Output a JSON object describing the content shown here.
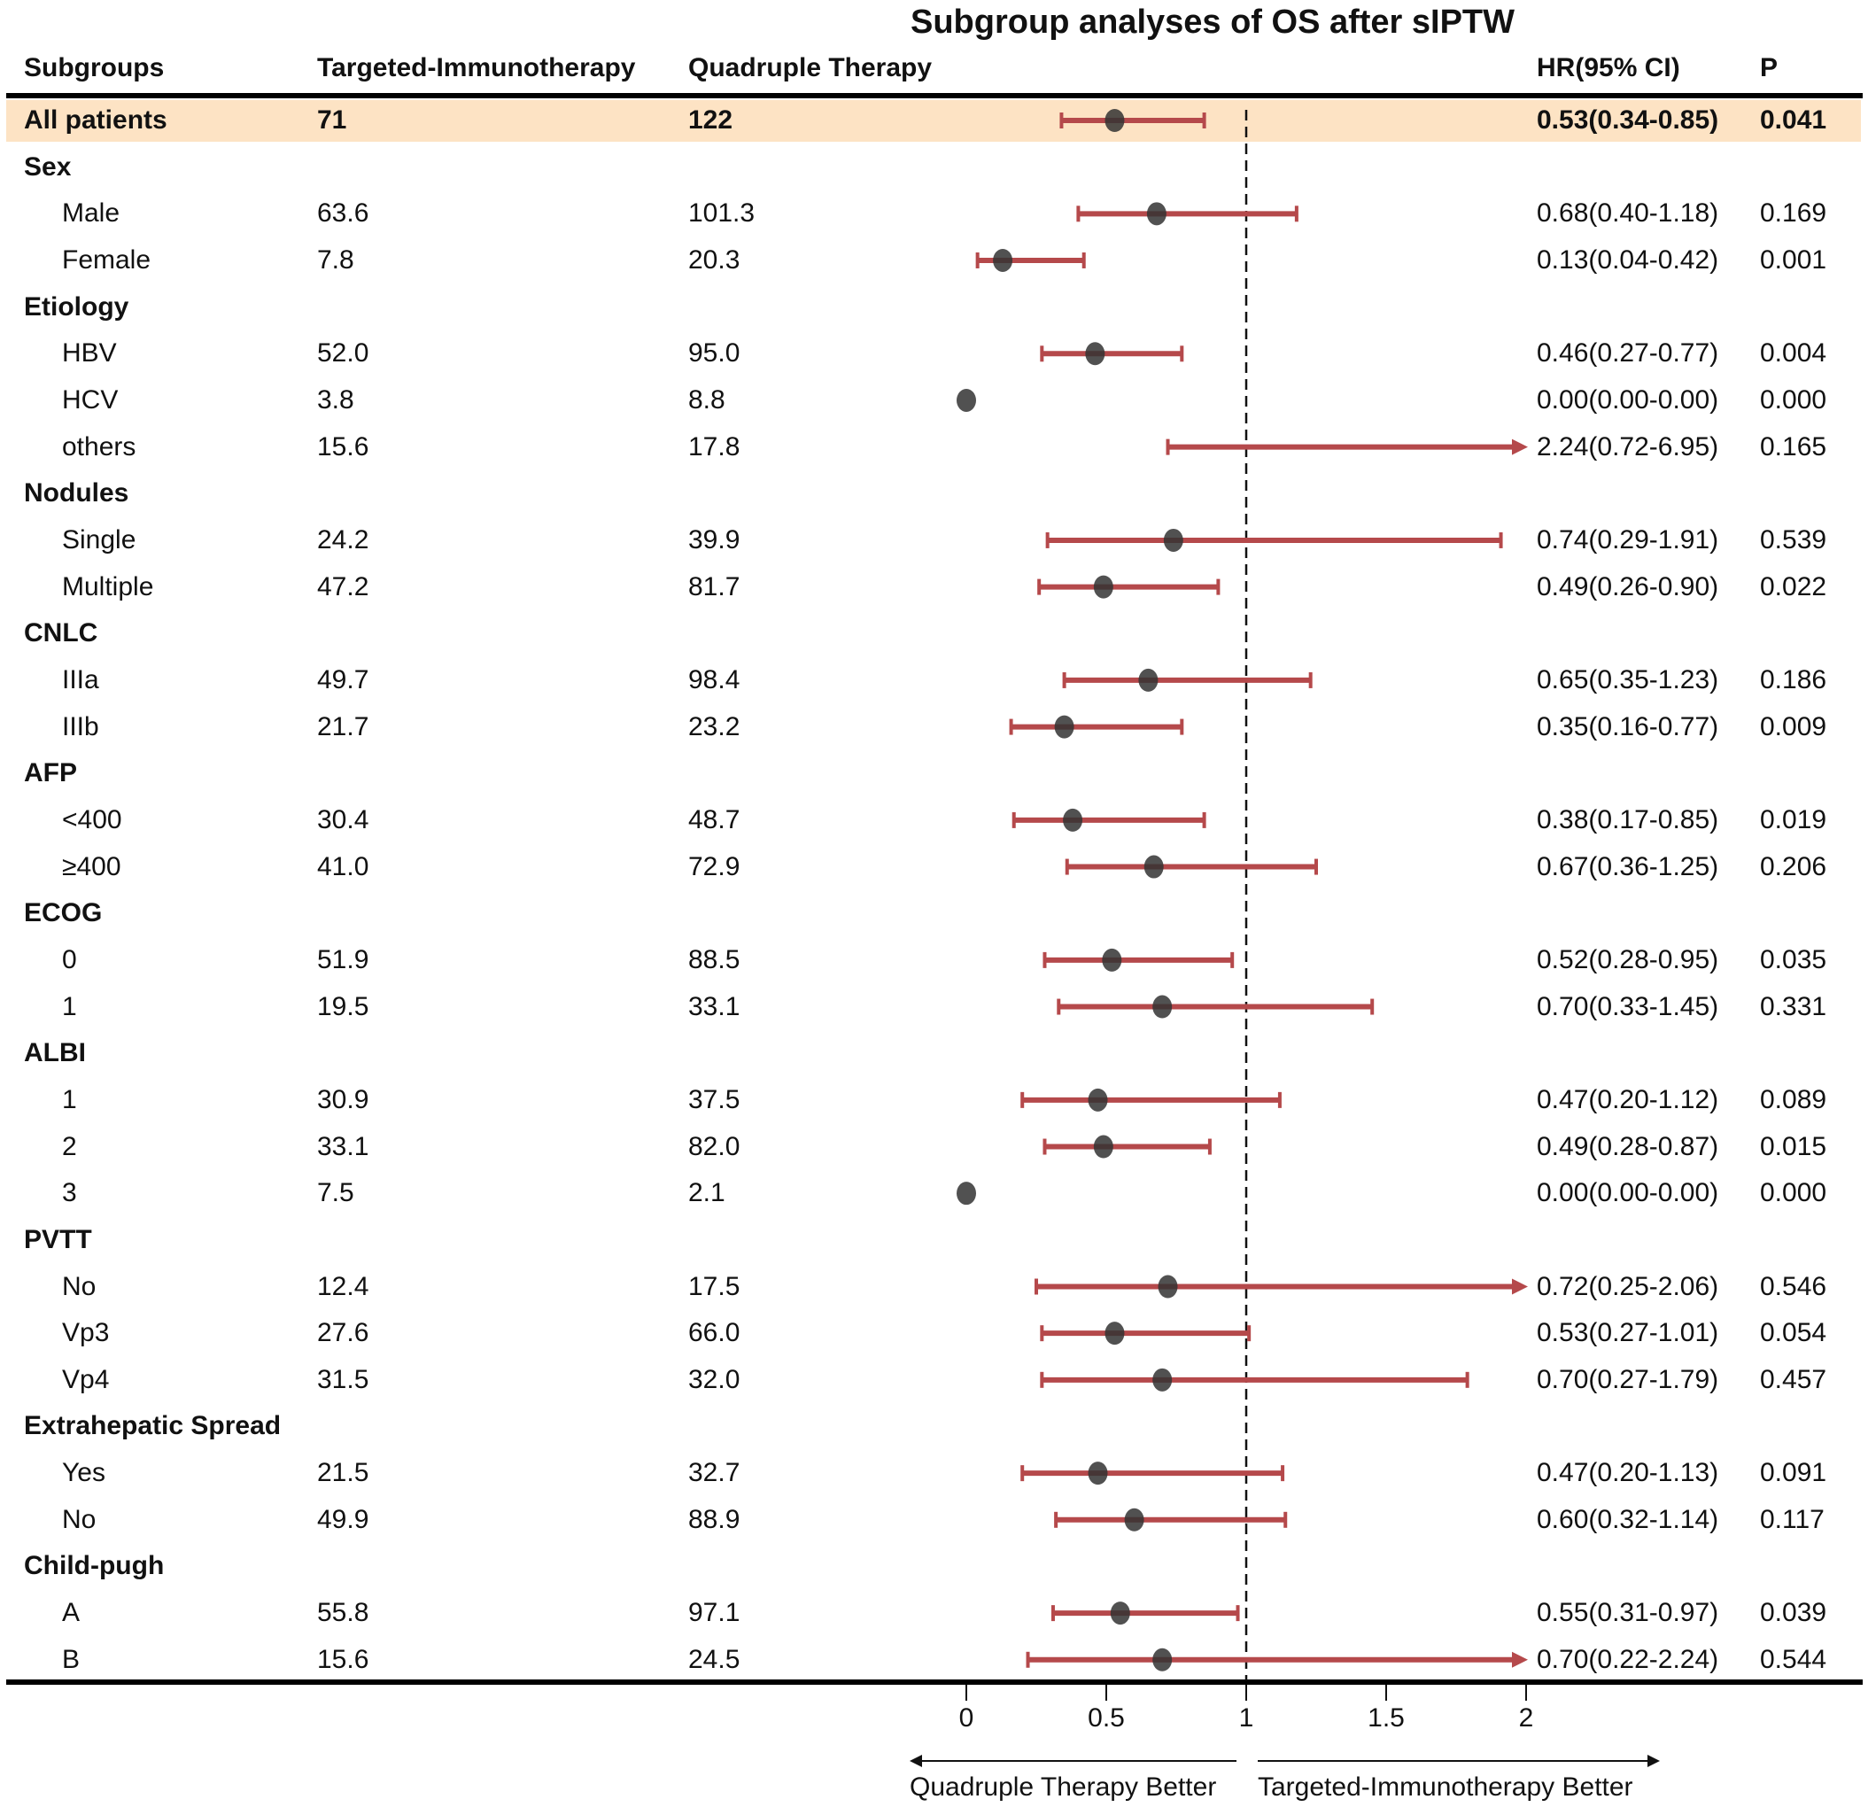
{
  "chart_data": {
    "type": "forest",
    "title": "Subgroup analyses of OS after sIPTW",
    "headers": {
      "subgroups": "Subgroups",
      "col1": "Targeted-Immunotherapy",
      "col2": "Quadruple Therapy",
      "hr": "HR(95% CI)",
      "p": "P"
    },
    "xaxis": {
      "ticks": [
        0,
        0.5,
        1,
        1.5,
        2
      ],
      "tick_labels": [
        "0",
        "0.5",
        "1",
        "1.5",
        "2"
      ],
      "xlim": [
        0,
        2
      ],
      "reference": 1
    },
    "direction_labels": {
      "left": "Quadruple Therapy Better",
      "right": "Targeted-Immunotherapy Better"
    },
    "colors": {
      "ci": "#b5494b",
      "point": "#333333",
      "highlight": "#fde3c4"
    },
    "rows": [
      {
        "label": "All patients",
        "kind": "overall",
        "t": "71",
        "q": "122",
        "hr": 0.53,
        "lo": 0.34,
        "hi": 0.85,
        "ci_text": "0.53(0.34-0.85)",
        "p": "0.041"
      },
      {
        "label": "Sex",
        "kind": "group"
      },
      {
        "label": "Male",
        "kind": "sub",
        "t": "63.6",
        "q": "101.3",
        "hr": 0.68,
        "lo": 0.4,
        "hi": 1.18,
        "ci_text": "0.68(0.40-1.18)",
        "p": "0.169"
      },
      {
        "label": "Female",
        "kind": "sub",
        "t": "7.8",
        "q": "20.3",
        "hr": 0.13,
        "lo": 0.04,
        "hi": 0.42,
        "ci_text": "0.13(0.04-0.42)",
        "p": "0.001"
      },
      {
        "label": "Etiology",
        "kind": "group"
      },
      {
        "label": "HBV",
        "kind": "sub",
        "t": "52.0",
        "q": "95.0",
        "hr": 0.46,
        "lo": 0.27,
        "hi": 0.77,
        "ci_text": "0.46(0.27-0.77)",
        "p": "0.004"
      },
      {
        "label": "HCV",
        "kind": "sub",
        "t": "3.8",
        "q": "8.8",
        "hr": 0.0,
        "lo": 0.0,
        "hi": 0.0,
        "ci_text": "0.00(0.00-0.00)",
        "p": "0.000"
      },
      {
        "label": "others",
        "kind": "sub",
        "t": "15.6",
        "q": "17.8",
        "hr": 2.24,
        "lo": 0.72,
        "hi": 6.95,
        "ci_text": "2.24(0.72-6.95)",
        "p": "0.165"
      },
      {
        "label": "Nodules",
        "kind": "group"
      },
      {
        "label": "Single",
        "kind": "sub",
        "t": "24.2",
        "q": "39.9",
        "hr": 0.74,
        "lo": 0.29,
        "hi": 1.91,
        "ci_text": "0.74(0.29-1.91)",
        "p": "0.539"
      },
      {
        "label": "Multiple",
        "kind": "sub",
        "t": "47.2",
        "q": "81.7",
        "hr": 0.49,
        "lo": 0.26,
        "hi": 0.9,
        "ci_text": "0.49(0.26-0.90)",
        "p": "0.022"
      },
      {
        "label": "CNLC",
        "kind": "group"
      },
      {
        "label": "IIIa",
        "kind": "sub",
        "t": "49.7",
        "q": "98.4",
        "hr": 0.65,
        "lo": 0.35,
        "hi": 1.23,
        "ci_text": "0.65(0.35-1.23)",
        "p": "0.186"
      },
      {
        "label": "IIIb",
        "kind": "sub",
        "t": "21.7",
        "q": "23.2",
        "hr": 0.35,
        "lo": 0.16,
        "hi": 0.77,
        "ci_text": "0.35(0.16-0.77)",
        "p": "0.009"
      },
      {
        "label": "AFP",
        "kind": "group"
      },
      {
        "label": "<400",
        "kind": "sub",
        "t": "30.4",
        "q": "48.7",
        "hr": 0.38,
        "lo": 0.17,
        "hi": 0.85,
        "ci_text": "0.38(0.17-0.85)",
        "p": "0.019"
      },
      {
        "label": "≥400",
        "kind": "sub",
        "t": "41.0",
        "q": "72.9",
        "hr": 0.67,
        "lo": 0.36,
        "hi": 1.25,
        "ci_text": "0.67(0.36-1.25)",
        "p": "0.206"
      },
      {
        "label": "ECOG",
        "kind": "group"
      },
      {
        "label": "0",
        "kind": "sub",
        "t": "51.9",
        "q": "88.5",
        "hr": 0.52,
        "lo": 0.28,
        "hi": 0.95,
        "ci_text": "0.52(0.28-0.95)",
        "p": "0.035"
      },
      {
        "label": "1",
        "kind": "sub",
        "t": "19.5",
        "q": "33.1",
        "hr": 0.7,
        "lo": 0.33,
        "hi": 1.45,
        "ci_text": "0.70(0.33-1.45)",
        "p": "0.331"
      },
      {
        "label": "ALBI",
        "kind": "group"
      },
      {
        "label": "1",
        "kind": "sub",
        "t": "30.9",
        "q": "37.5",
        "hr": 0.47,
        "lo": 0.2,
        "hi": 1.12,
        "ci_text": "0.47(0.20-1.12)",
        "p": "0.089"
      },
      {
        "label": "2",
        "kind": "sub",
        "t": "33.1",
        "q": "82.0",
        "hr": 0.49,
        "lo": 0.28,
        "hi": 0.87,
        "ci_text": "0.49(0.28-0.87)",
        "p": "0.015"
      },
      {
        "label": "3",
        "kind": "sub",
        "t": "7.5",
        "q": "2.1",
        "hr": 0.0,
        "lo": 0.0,
        "hi": 0.0,
        "ci_text": "0.00(0.00-0.00)",
        "p": "0.000"
      },
      {
        "label": "PVTT",
        "kind": "group"
      },
      {
        "label": "No",
        "kind": "sub",
        "t": "12.4",
        "q": "17.5",
        "hr": 0.72,
        "lo": 0.25,
        "hi": 2.06,
        "ci_text": "0.72(0.25-2.06)",
        "p": "0.546"
      },
      {
        "label": "Vp3",
        "kind": "sub",
        "t": "27.6",
        "q": "66.0",
        "hr": 0.53,
        "lo": 0.27,
        "hi": 1.01,
        "ci_text": "0.53(0.27-1.01)",
        "p": "0.054"
      },
      {
        "label": "Vp4",
        "kind": "sub",
        "t": "31.5",
        "q": "32.0",
        "hr": 0.7,
        "lo": 0.27,
        "hi": 1.79,
        "ci_text": "0.70(0.27-1.79)",
        "p": "0.457"
      },
      {
        "label": "Extrahepatic Spread",
        "kind": "group"
      },
      {
        "label": "Yes",
        "kind": "sub",
        "t": "21.5",
        "q": "32.7",
        "hr": 0.47,
        "lo": 0.2,
        "hi": 1.13,
        "ci_text": "0.47(0.20-1.13)",
        "p": "0.091"
      },
      {
        "label": "No",
        "kind": "sub",
        "t": "49.9",
        "q": "88.9",
        "hr": 0.6,
        "lo": 0.32,
        "hi": 1.14,
        "ci_text": "0.60(0.32-1.14)",
        "p": "0.117"
      },
      {
        "label": "Child-pugh",
        "kind": "group"
      },
      {
        "label": "A",
        "kind": "sub",
        "t": "55.8",
        "q": "97.1",
        "hr": 0.55,
        "lo": 0.31,
        "hi": 0.97,
        "ci_text": "0.55(0.31-0.97)",
        "p": "0.039"
      },
      {
        "label": "B",
        "kind": "sub",
        "t": "15.6",
        "q": "24.5",
        "hr": 0.7,
        "lo": 0.22,
        "hi": 2.24,
        "ci_text": "0.70(0.22-2.24)",
        "p": "0.544"
      }
    ]
  }
}
